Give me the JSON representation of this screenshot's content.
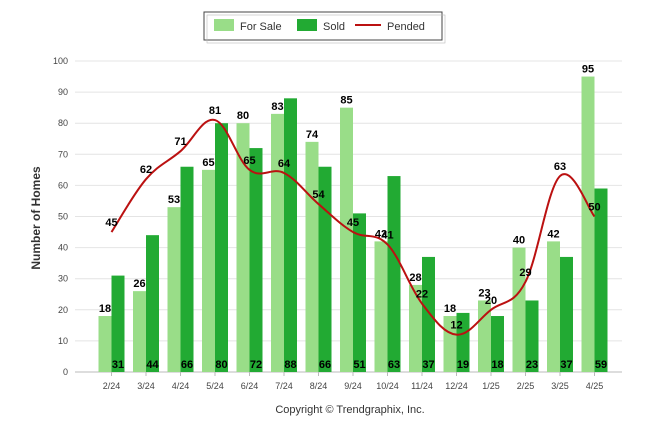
{
  "chart_data": {
    "type": "bar",
    "ylabel": "Number of Homes",
    "ylim": [
      0,
      100
    ],
    "yticks": [
      0,
      10,
      20,
      30,
      40,
      50,
      60,
      70,
      80,
      90,
      100
    ],
    "grid": true,
    "legend_position": "top-center",
    "categories": [
      "2/24",
      "3/24",
      "4/24",
      "5/24",
      "6/24",
      "7/24",
      "8/24",
      "9/24",
      "10/24",
      "11/24",
      "12/24",
      "1/25",
      "2/25",
      "3/25",
      "4/25"
    ],
    "series": [
      {
        "name": "For Sale",
        "type": "bar",
        "color": "#99dd88",
        "values": [
          18,
          26,
          53,
          65,
          80,
          83,
          74,
          85,
          42,
          28,
          18,
          23,
          40,
          42,
          95
        ]
      },
      {
        "name": "Sold",
        "type": "bar",
        "color": "#22aa33",
        "values": [
          31,
          44,
          66,
          80,
          72,
          88,
          66,
          51,
          63,
          37,
          19,
          18,
          23,
          37,
          59
        ]
      },
      {
        "name": "Pended",
        "type": "line",
        "color": "#bb1111",
        "values": [
          45,
          62,
          71,
          81,
          65,
          64,
          54,
          45,
          41,
          22,
          12,
          20,
          29,
          63,
          50
        ]
      }
    ]
  },
  "footer": "Copyright © Trendgraphix, Inc."
}
